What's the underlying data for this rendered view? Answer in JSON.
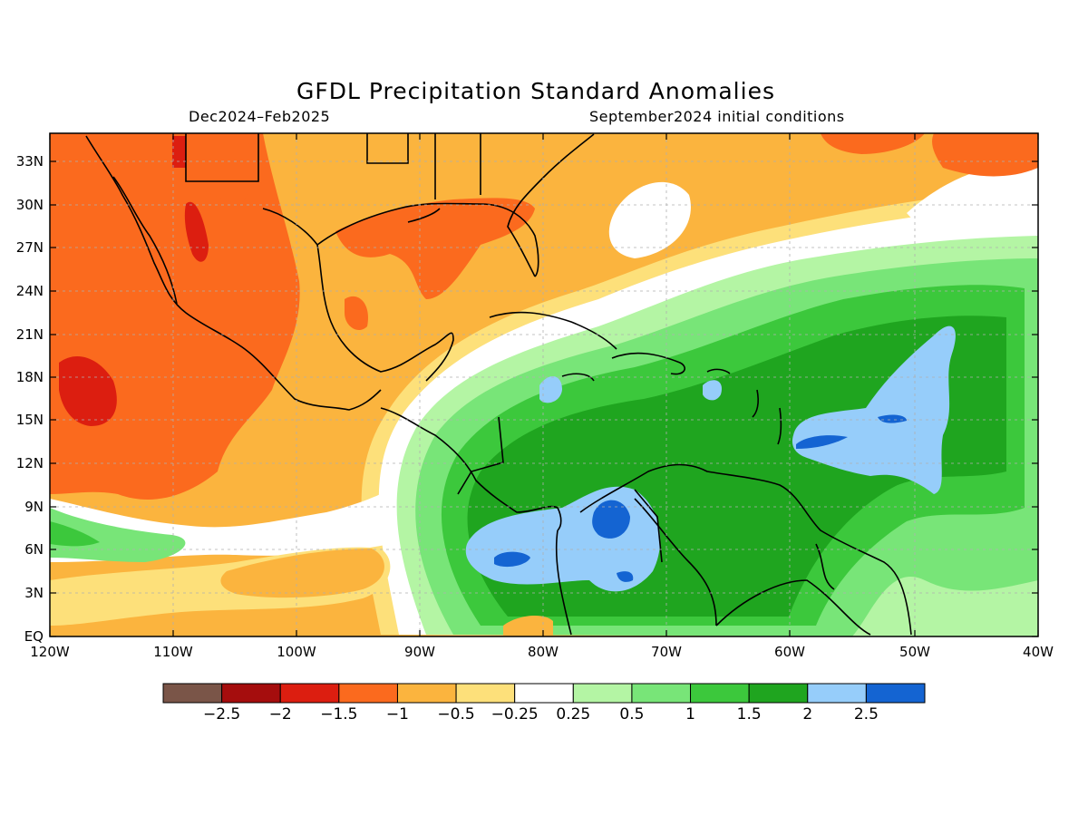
{
  "title": "GFDL Precipitation Standard Anomalies",
  "subtitle_left": "Dec2024–Feb2025",
  "subtitle_right": "September2024 initial conditions",
  "lat_ticks": [
    "33N",
    "30N",
    "27N",
    "24N",
    "21N",
    "18N",
    "15N",
    "12N",
    "9N",
    "6N",
    "3N",
    "EQ"
  ],
  "lon_ticks": [
    "120W",
    "110W",
    "100W",
    "90W",
    "80W",
    "70W",
    "60W",
    "50W",
    "40W"
  ],
  "colorbar": {
    "colors": [
      "#7a5548",
      "#a50d0d",
      "#dc1e10",
      "#fb6a1e",
      "#fbb43e",
      "#fde07a",
      "#ffffff",
      "#b4f5a4",
      "#78e578",
      "#3cc83c",
      "#1fa51f",
      "#96cdfa",
      "#1464d2"
    ],
    "labels": [
      "−2.5",
      "−2",
      "−1.5",
      "−1",
      "−0.5",
      "−0.25",
      "0.25",
      "0.5",
      "1",
      "1.5",
      "2",
      "2.5"
    ]
  },
  "legend_palette": {
    "strong_dry": "#dc1e10",
    "dry": "#fb6a1e",
    "moderate_dry": "#fbb43e",
    "weak_dry": "#fde07a",
    "neutral": "#ffffff",
    "weak_wet": "#b4f5a4",
    "moderate_wet": "#78e578",
    "wet": "#3cc83c",
    "very_wet": "#1fa51f",
    "strong_wet": "#96cdfa",
    "extreme_wet": "#1464d2"
  }
}
